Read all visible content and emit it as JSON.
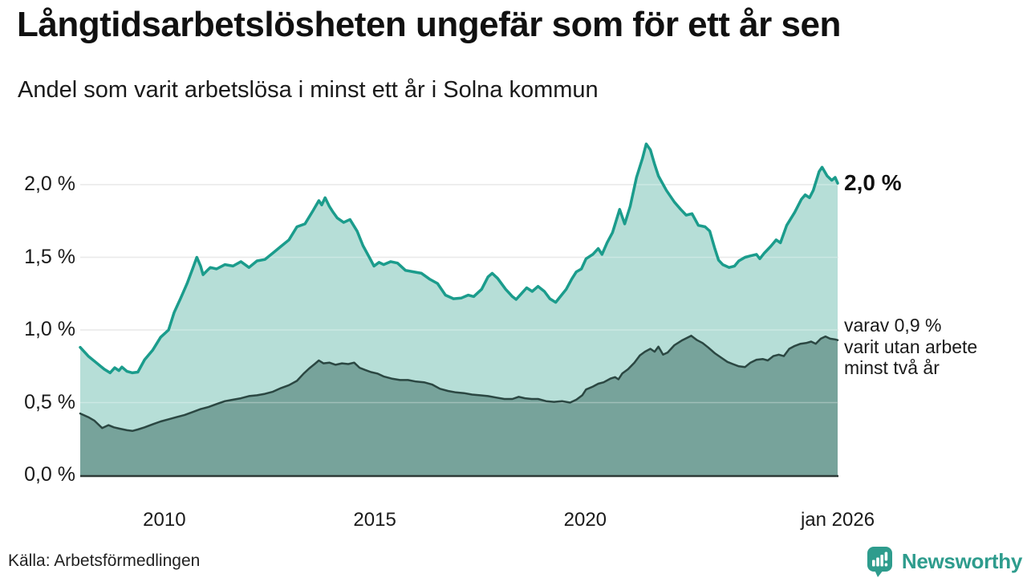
{
  "header": {
    "title": "Långtidsarbetslösheten ungefär som för ett år sen",
    "subtitle": "Andel som varit arbetslösa i minst ett år i Solna kommun"
  },
  "chart_data": {
    "type": "area",
    "unit": "%",
    "x_range": [
      2008,
      2026
    ],
    "y_range": [
      0,
      2.3
    ],
    "grid": "horizontal",
    "colors": {
      "grid": "#E1E1E1",
      "axis": "#2E3A37",
      "text": "#1a1a1a"
    },
    "y_ticks": [
      {
        "v": 2.0,
        "label": "2,0 %"
      },
      {
        "v": 1.5,
        "label": "1,5 %"
      },
      {
        "v": 1.0,
        "label": "1,0 %"
      },
      {
        "v": 0.5,
        "label": "0,5 %"
      },
      {
        "v": 0.0,
        "label": "0,0 %"
      }
    ],
    "x_ticks": [
      {
        "t": 2010,
        "label": "2010"
      },
      {
        "t": 2015,
        "label": "2015"
      },
      {
        "t": 2020,
        "label": "2020"
      },
      {
        "t": 2026,
        "label": "jan 2026"
      }
    ],
    "end_labels": {
      "primary": "2,0 %",
      "secondary": "varav 0,9 %\nvarit utan arbete\nminst två år"
    },
    "series": [
      {
        "id": "minst-ett-ar",
        "name": "Andel arbetslösa minst ett år",
        "line_color": "#1B9C8C",
        "fill_color": "#B6DED7",
        "line_width": 3.5,
        "points": [
          [
            2008.0,
            0.88
          ],
          [
            2008.19,
            0.82
          ],
          [
            2008.38,
            0.775
          ],
          [
            2008.57,
            0.73
          ],
          [
            2008.71,
            0.705
          ],
          [
            2008.82,
            0.74
          ],
          [
            2008.92,
            0.72
          ],
          [
            2008.99,
            0.745
          ],
          [
            2009.11,
            0.715
          ],
          [
            2009.24,
            0.705
          ],
          [
            2009.37,
            0.71
          ],
          [
            2009.53,
            0.795
          ],
          [
            2009.72,
            0.86
          ],
          [
            2009.91,
            0.95
          ],
          [
            2010.1,
            1.0
          ],
          [
            2010.23,
            1.12
          ],
          [
            2010.39,
            1.22
          ],
          [
            2010.54,
            1.32
          ],
          [
            2010.67,
            1.42
          ],
          [
            2010.77,
            1.5
          ],
          [
            2010.86,
            1.44
          ],
          [
            2010.92,
            1.38
          ],
          [
            2011.02,
            1.41
          ],
          [
            2011.09,
            1.43
          ],
          [
            2011.24,
            1.42
          ],
          [
            2011.44,
            1.45
          ],
          [
            2011.63,
            1.44
          ],
          [
            2011.82,
            1.47
          ],
          [
            2012.01,
            1.43
          ],
          [
            2012.2,
            1.475
          ],
          [
            2012.39,
            1.485
          ],
          [
            2012.58,
            1.53
          ],
          [
            2012.77,
            1.575
          ],
          [
            2012.96,
            1.62
          ],
          [
            2013.15,
            1.71
          ],
          [
            2013.34,
            1.73
          ],
          [
            2013.53,
            1.82
          ],
          [
            2013.67,
            1.89
          ],
          [
            2013.74,
            1.86
          ],
          [
            2013.82,
            1.91
          ],
          [
            2013.92,
            1.85
          ],
          [
            2014.01,
            1.81
          ],
          [
            2014.11,
            1.77
          ],
          [
            2014.26,
            1.74
          ],
          [
            2014.41,
            1.76
          ],
          [
            2014.58,
            1.68
          ],
          [
            2014.72,
            1.58
          ],
          [
            2014.87,
            1.5
          ],
          [
            2014.98,
            1.44
          ],
          [
            2015.1,
            1.465
          ],
          [
            2015.21,
            1.45
          ],
          [
            2015.38,
            1.47
          ],
          [
            2015.54,
            1.46
          ],
          [
            2015.73,
            1.41
          ],
          [
            2015.92,
            1.4
          ],
          [
            2016.11,
            1.39
          ],
          [
            2016.3,
            1.35
          ],
          [
            2016.49,
            1.32
          ],
          [
            2016.68,
            1.24
          ],
          [
            2016.87,
            1.215
          ],
          [
            2017.06,
            1.22
          ],
          [
            2017.22,
            1.24
          ],
          [
            2017.35,
            1.23
          ],
          [
            2017.54,
            1.28
          ],
          [
            2017.69,
            1.365
          ],
          [
            2017.79,
            1.39
          ],
          [
            2017.92,
            1.355
          ],
          [
            2018.11,
            1.28
          ],
          [
            2018.27,
            1.23
          ],
          [
            2018.36,
            1.21
          ],
          [
            2018.5,
            1.255
          ],
          [
            2018.61,
            1.29
          ],
          [
            2018.74,
            1.265
          ],
          [
            2018.88,
            1.3
          ],
          [
            2019.03,
            1.265
          ],
          [
            2019.16,
            1.215
          ],
          [
            2019.3,
            1.19
          ],
          [
            2019.41,
            1.23
          ],
          [
            2019.55,
            1.28
          ],
          [
            2019.68,
            1.35
          ],
          [
            2019.79,
            1.4
          ],
          [
            2019.91,
            1.42
          ],
          [
            2020.02,
            1.49
          ],
          [
            2020.18,
            1.52
          ],
          [
            2020.31,
            1.56
          ],
          [
            2020.4,
            1.52
          ],
          [
            2020.52,
            1.6
          ],
          [
            2020.65,
            1.67
          ],
          [
            2020.82,
            1.83
          ],
          [
            2020.94,
            1.73
          ],
          [
            2021.07,
            1.85
          ],
          [
            2021.22,
            2.05
          ],
          [
            2021.36,
            2.18
          ],
          [
            2021.45,
            2.28
          ],
          [
            2021.55,
            2.24
          ],
          [
            2021.65,
            2.14
          ],
          [
            2021.74,
            2.06
          ],
          [
            2021.93,
            1.96
          ],
          [
            2022.12,
            1.88
          ],
          [
            2022.27,
            1.83
          ],
          [
            2022.4,
            1.79
          ],
          [
            2022.54,
            1.8
          ],
          [
            2022.69,
            1.72
          ],
          [
            2022.85,
            1.71
          ],
          [
            2022.96,
            1.68
          ],
          [
            2023.08,
            1.56
          ],
          [
            2023.17,
            1.48
          ],
          [
            2023.27,
            1.45
          ],
          [
            2023.42,
            1.43
          ],
          [
            2023.55,
            1.44
          ],
          [
            2023.65,
            1.475
          ],
          [
            2023.8,
            1.5
          ],
          [
            2023.93,
            1.51
          ],
          [
            2024.07,
            1.52
          ],
          [
            2024.15,
            1.49
          ],
          [
            2024.26,
            1.53
          ],
          [
            2024.41,
            1.575
          ],
          [
            2024.54,
            1.62
          ],
          [
            2024.64,
            1.6
          ],
          [
            2024.79,
            1.72
          ],
          [
            2024.98,
            1.81
          ],
          [
            2025.14,
            1.9
          ],
          [
            2025.23,
            1.93
          ],
          [
            2025.33,
            1.91
          ],
          [
            2025.42,
            1.96
          ],
          [
            2025.56,
            2.09
          ],
          [
            2025.63,
            2.12
          ],
          [
            2025.75,
            2.06
          ],
          [
            2025.86,
            2.03
          ],
          [
            2025.94,
            2.05
          ],
          [
            2026.0,
            2.01
          ]
        ]
      },
      {
        "id": "minst-tva-ar",
        "name": "varav utan arbete minst två år",
        "line_color": "#2B4742",
        "fill_color": "#77A39B",
        "line_width": 2.5,
        "points": [
          [
            2008.0,
            0.425
          ],
          [
            2008.19,
            0.4
          ],
          [
            2008.34,
            0.375
          ],
          [
            2008.52,
            0.325
          ],
          [
            2008.67,
            0.345
          ],
          [
            2008.8,
            0.33
          ],
          [
            2008.95,
            0.32
          ],
          [
            2009.11,
            0.31
          ],
          [
            2009.24,
            0.305
          ],
          [
            2009.37,
            0.315
          ],
          [
            2009.53,
            0.33
          ],
          [
            2009.72,
            0.35
          ],
          [
            2009.91,
            0.37
          ],
          [
            2010.1,
            0.385
          ],
          [
            2010.29,
            0.4
          ],
          [
            2010.48,
            0.415
          ],
          [
            2010.67,
            0.435
          ],
          [
            2010.86,
            0.455
          ],
          [
            2011.05,
            0.47
          ],
          [
            2011.24,
            0.49
          ],
          [
            2011.44,
            0.51
          ],
          [
            2011.63,
            0.52
          ],
          [
            2011.82,
            0.53
          ],
          [
            2012.01,
            0.545
          ],
          [
            2012.2,
            0.55
          ],
          [
            2012.39,
            0.56
          ],
          [
            2012.58,
            0.575
          ],
          [
            2012.77,
            0.6
          ],
          [
            2012.96,
            0.62
          ],
          [
            2013.15,
            0.65
          ],
          [
            2013.31,
            0.7
          ],
          [
            2013.44,
            0.735
          ],
          [
            2013.57,
            0.765
          ],
          [
            2013.67,
            0.79
          ],
          [
            2013.78,
            0.77
          ],
          [
            2013.92,
            0.775
          ],
          [
            2014.07,
            0.76
          ],
          [
            2014.22,
            0.77
          ],
          [
            2014.37,
            0.765
          ],
          [
            2014.51,
            0.775
          ],
          [
            2014.64,
            0.74
          ],
          [
            2014.77,
            0.725
          ],
          [
            2014.91,
            0.71
          ],
          [
            2015.06,
            0.7
          ],
          [
            2015.21,
            0.68
          ],
          [
            2015.4,
            0.665
          ],
          [
            2015.6,
            0.655
          ],
          [
            2015.79,
            0.655
          ],
          [
            2015.98,
            0.645
          ],
          [
            2016.17,
            0.64
          ],
          [
            2016.36,
            0.625
          ],
          [
            2016.55,
            0.595
          ],
          [
            2016.74,
            0.58
          ],
          [
            2016.93,
            0.57
          ],
          [
            2017.12,
            0.565
          ],
          [
            2017.31,
            0.555
          ],
          [
            2017.5,
            0.55
          ],
          [
            2017.69,
            0.545
          ],
          [
            2017.88,
            0.535
          ],
          [
            2018.08,
            0.525
          ],
          [
            2018.27,
            0.525
          ],
          [
            2018.42,
            0.54
          ],
          [
            2018.57,
            0.53
          ],
          [
            2018.73,
            0.525
          ],
          [
            2018.88,
            0.525
          ],
          [
            2019.07,
            0.51
          ],
          [
            2019.26,
            0.505
          ],
          [
            2019.45,
            0.51
          ],
          [
            2019.64,
            0.5
          ],
          [
            2019.79,
            0.52
          ],
          [
            2019.93,
            0.55
          ],
          [
            2020.02,
            0.59
          ],
          [
            2020.18,
            0.61
          ],
          [
            2020.31,
            0.63
          ],
          [
            2020.44,
            0.64
          ],
          [
            2020.6,
            0.665
          ],
          [
            2020.71,
            0.675
          ],
          [
            2020.79,
            0.66
          ],
          [
            2020.88,
            0.7
          ],
          [
            2021.02,
            0.73
          ],
          [
            2021.17,
            0.775
          ],
          [
            2021.3,
            0.825
          ],
          [
            2021.42,
            0.85
          ],
          [
            2021.55,
            0.87
          ],
          [
            2021.65,
            0.85
          ],
          [
            2021.74,
            0.885
          ],
          [
            2021.85,
            0.83
          ],
          [
            2021.96,
            0.845
          ],
          [
            2022.12,
            0.895
          ],
          [
            2022.31,
            0.93
          ],
          [
            2022.52,
            0.96
          ],
          [
            2022.66,
            0.93
          ],
          [
            2022.79,
            0.91
          ],
          [
            2022.92,
            0.88
          ],
          [
            2023.08,
            0.84
          ],
          [
            2023.23,
            0.81
          ],
          [
            2023.38,
            0.78
          ],
          [
            2023.51,
            0.765
          ],
          [
            2023.65,
            0.75
          ],
          [
            2023.8,
            0.745
          ],
          [
            2023.93,
            0.775
          ],
          [
            2024.07,
            0.795
          ],
          [
            2024.22,
            0.8
          ],
          [
            2024.34,
            0.79
          ],
          [
            2024.47,
            0.82
          ],
          [
            2024.6,
            0.83
          ],
          [
            2024.72,
            0.82
          ],
          [
            2024.85,
            0.87
          ],
          [
            2024.98,
            0.89
          ],
          [
            2025.12,
            0.905
          ],
          [
            2025.25,
            0.91
          ],
          [
            2025.37,
            0.92
          ],
          [
            2025.48,
            0.905
          ],
          [
            2025.6,
            0.94
          ],
          [
            2025.71,
            0.955
          ],
          [
            2025.82,
            0.94
          ],
          [
            2025.94,
            0.935
          ],
          [
            2026.0,
            0.93
          ]
        ]
      }
    ]
  },
  "footer": {
    "source": "Källa: Arbetsförmedlingen",
    "brand": "Newsworthy",
    "brand_color": "#2E9C8D"
  }
}
